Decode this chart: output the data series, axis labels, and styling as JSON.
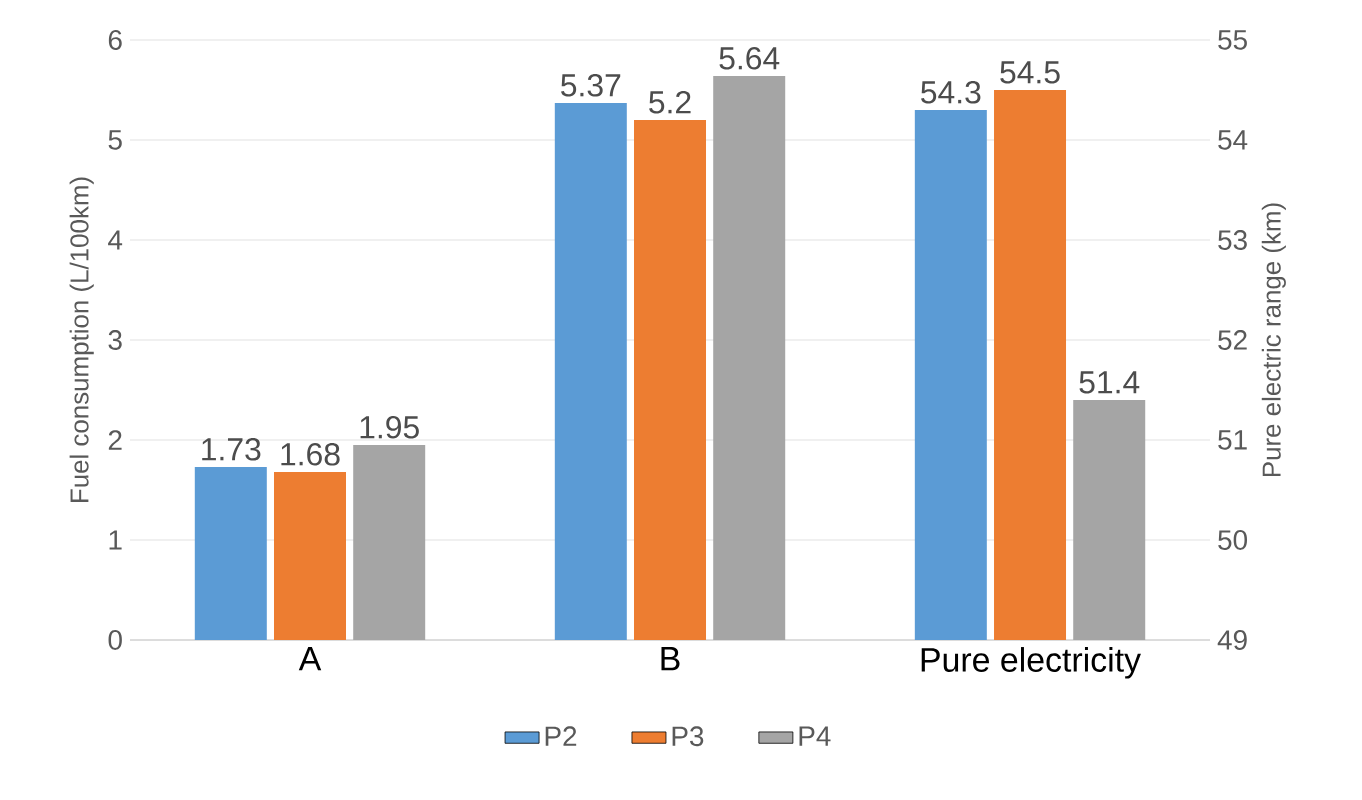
{
  "chart_data": {
    "type": "bar",
    "categories": [
      "A",
      "B",
      "Pure electricity"
    ],
    "series": [
      {
        "name": "P2",
        "color": "#5b9bd5",
        "values": [
          1.73,
          5.37,
          null
        ]
      },
      {
        "name": "P3",
        "color": "#ed7d31",
        "values": [
          1.68,
          5.2,
          null
        ]
      },
      {
        "name": "P4",
        "color": "#a5a5a5",
        "values": [
          1.95,
          5.64,
          null
        ]
      },
      {
        "color": "#5b9bd5",
        "axis": "y2",
        "values": [
          null,
          null,
          54.3
        ]
      },
      {
        "color": "#ed7d31",
        "axis": "y2",
        "values": [
          null,
          null,
          54.5
        ]
      },
      {
        "color": "#a5a5a5",
        "axis": "y2",
        "values": [
          null,
          null,
          51.4
        ]
      }
    ],
    "ylabel": "Fuel consumption (L/100km)",
    "y2label": "Pure electric range (km)",
    "ylim": [
      0,
      6
    ],
    "yticks": [
      0,
      1,
      2,
      3,
      4,
      5,
      6
    ],
    "y2lim": [
      49,
      55
    ],
    "y2ticks": [
      49,
      50,
      51,
      52,
      53,
      54,
      55
    ],
    "data_labels": true,
    "grid": "y",
    "legend": "bottom"
  }
}
